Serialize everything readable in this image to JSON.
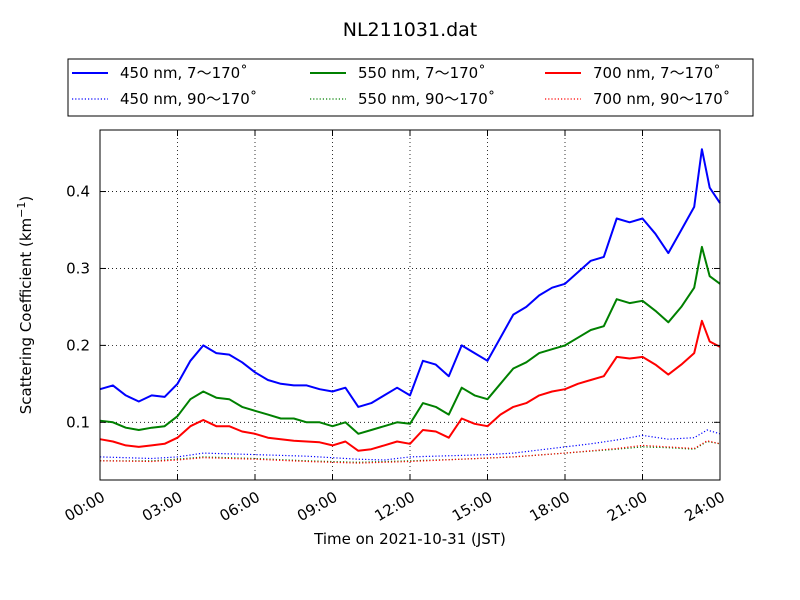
{
  "chart_data": {
    "type": "line",
    "title": "NL211031.dat",
    "xlabel": "Time on 2021-10-31 (JST)",
    "ylabel": "Scattering Coefficient (km",
    "ylabel_exp": "−1",
    "ylabel_close": ")",
    "xlim": [
      0,
      24
    ],
    "ylim": [
      0.025,
      0.48
    ],
    "grid": true,
    "legend_position": "top",
    "x_ticks": [
      0,
      3,
      6,
      9,
      12,
      15,
      18,
      21,
      24
    ],
    "x_tick_labels": [
      "00:00",
      "03:00",
      "06:00",
      "09:00",
      "12:00",
      "15:00",
      "18:00",
      "21:00",
      "24:00"
    ],
    "y_ticks": [
      0.1,
      0.2,
      0.3,
      0.4
    ],
    "y_tick_labels": [
      "0.1",
      "0.2",
      "0.3",
      "0.4"
    ],
    "series": [
      {
        "name": "450 nm, 7～170˚",
        "color": "#0000ff",
        "style": "solid",
        "x": [
          0,
          0.5,
          1,
          1.5,
          2,
          2.5,
          3,
          3.5,
          4,
          4.5,
          5,
          5.5,
          6,
          6.5,
          7,
          7.5,
          8,
          8.5,
          9,
          9.5,
          10,
          10.5,
          11,
          11.5,
          12,
          12.5,
          13,
          13.5,
          14,
          14.5,
          15,
          15.5,
          16,
          16.5,
          17,
          17.5,
          18,
          18.5,
          19,
          19.5,
          20,
          20.5,
          21,
          21.5,
          22,
          22.5,
          23,
          23.3,
          23.6,
          24
        ],
        "y": [
          0.143,
          0.148,
          0.135,
          0.127,
          0.135,
          0.133,
          0.15,
          0.18,
          0.2,
          0.19,
          0.188,
          0.178,
          0.165,
          0.155,
          0.15,
          0.148,
          0.148,
          0.143,
          0.14,
          0.145,
          0.12,
          0.125,
          0.135,
          0.145,
          0.135,
          0.18,
          0.175,
          0.16,
          0.2,
          0.19,
          0.18,
          0.21,
          0.24,
          0.25,
          0.265,
          0.275,
          0.28,
          0.295,
          0.31,
          0.315,
          0.365,
          0.36,
          0.365,
          0.345,
          0.32,
          0.35,
          0.38,
          0.455,
          0.405,
          0.385
        ]
      },
      {
        "name": "450 nm, 90～170˚",
        "color": "#0000ff",
        "style": "dotted",
        "x": [
          0,
          2,
          3,
          4,
          6,
          8,
          10,
          11,
          12,
          14,
          15,
          16,
          18,
          19,
          20,
          21,
          22,
          23,
          23.5,
          24
        ],
        "y": [
          0.055,
          0.053,
          0.055,
          0.06,
          0.058,
          0.056,
          0.052,
          0.051,
          0.055,
          0.057,
          0.058,
          0.06,
          0.068,
          0.072,
          0.077,
          0.083,
          0.078,
          0.08,
          0.09,
          0.085
        ]
      },
      {
        "name": "550 nm, 7～170˚",
        "color": "#008000",
        "style": "solid",
        "x": [
          0,
          0.5,
          1,
          1.5,
          2,
          2.5,
          3,
          3.5,
          4,
          4.5,
          5,
          5.5,
          6,
          6.5,
          7,
          7.5,
          8,
          8.5,
          9,
          9.5,
          10,
          10.5,
          11,
          11.5,
          12,
          12.5,
          13,
          13.5,
          14,
          14.5,
          15,
          15.5,
          16,
          16.5,
          17,
          17.5,
          18,
          18.5,
          19,
          19.5,
          20,
          20.5,
          21,
          21.5,
          22,
          22.5,
          23,
          23.3,
          23.6,
          24
        ],
        "y": [
          0.102,
          0.1,
          0.093,
          0.09,
          0.093,
          0.095,
          0.108,
          0.13,
          0.14,
          0.132,
          0.13,
          0.12,
          0.115,
          0.11,
          0.105,
          0.105,
          0.1,
          0.1,
          0.095,
          0.1,
          0.085,
          0.09,
          0.095,
          0.1,
          0.098,
          0.125,
          0.12,
          0.11,
          0.145,
          0.135,
          0.13,
          0.15,
          0.17,
          0.178,
          0.19,
          0.195,
          0.2,
          0.21,
          0.22,
          0.225,
          0.26,
          0.255,
          0.258,
          0.245,
          0.23,
          0.25,
          0.275,
          0.328,
          0.29,
          0.28
        ]
      },
      {
        "name": "550 nm, 90～170˚",
        "color": "#008000",
        "style": "dotted",
        "x": [
          0,
          2,
          3,
          4,
          6,
          8,
          10,
          12,
          14,
          16,
          18,
          20,
          21,
          22,
          23,
          23.5,
          24
        ],
        "y": [
          0.05,
          0.05,
          0.052,
          0.055,
          0.053,
          0.05,
          0.048,
          0.05,
          0.052,
          0.055,
          0.06,
          0.065,
          0.068,
          0.067,
          0.065,
          0.075,
          0.072
        ]
      },
      {
        "name": "700 nm, 7～170˚",
        "color": "#ff0000",
        "style": "solid",
        "x": [
          0,
          0.5,
          1,
          1.5,
          2,
          2.5,
          3,
          3.5,
          4,
          4.5,
          5,
          5.5,
          6,
          6.5,
          7,
          7.5,
          8,
          8.5,
          9,
          9.5,
          10,
          10.5,
          11,
          11.5,
          12,
          12.5,
          13,
          13.5,
          14,
          14.5,
          15,
          15.5,
          16,
          16.5,
          17,
          17.5,
          18,
          18.5,
          19,
          19.5,
          20,
          20.5,
          21,
          21.5,
          22,
          22.5,
          23,
          23.3,
          23.6,
          24
        ],
        "y": [
          0.078,
          0.075,
          0.07,
          0.068,
          0.07,
          0.072,
          0.08,
          0.095,
          0.103,
          0.095,
          0.095,
          0.088,
          0.085,
          0.08,
          0.078,
          0.076,
          0.075,
          0.074,
          0.07,
          0.075,
          0.063,
          0.065,
          0.07,
          0.075,
          0.072,
          0.09,
          0.088,
          0.08,
          0.105,
          0.098,
          0.095,
          0.11,
          0.12,
          0.125,
          0.135,
          0.14,
          0.143,
          0.15,
          0.155,
          0.16,
          0.185,
          0.183,
          0.185,
          0.175,
          0.162,
          0.175,
          0.19,
          0.232,
          0.205,
          0.198
        ]
      },
      {
        "name": "700 nm, 90～170˚",
        "color": "#ff0000",
        "style": "dotted",
        "x": [
          0,
          2,
          3,
          4,
          6,
          8,
          10,
          12,
          14,
          16,
          18,
          20,
          21,
          22,
          23,
          23.5,
          24
        ],
        "y": [
          0.05,
          0.049,
          0.051,
          0.054,
          0.052,
          0.049,
          0.047,
          0.049,
          0.052,
          0.055,
          0.06,
          0.066,
          0.07,
          0.068,
          0.066,
          0.076,
          0.072
        ]
      }
    ]
  }
}
